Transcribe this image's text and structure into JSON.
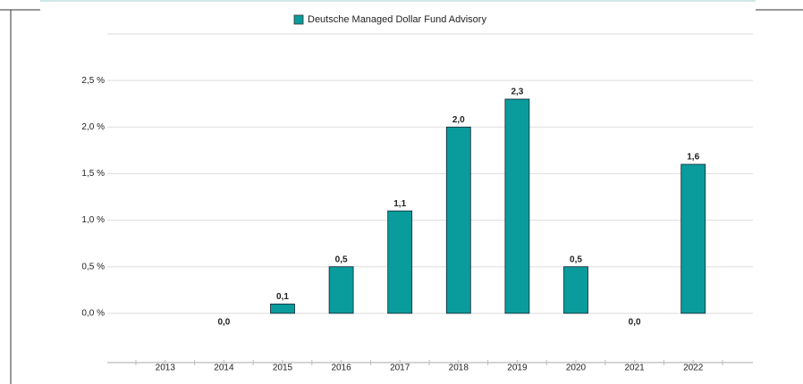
{
  "chart_data": {
    "type": "bar",
    "series": [
      {
        "name": "Deutsche Managed Dollar Fund Advisory",
        "color": "#0a9c9c",
        "values": [
          null,
          0.0,
          0.1,
          0.5,
          1.1,
          2.0,
          2.3,
          0.5,
          0.0,
          1.6
        ],
        "value_labels": [
          null,
          "0,0",
          "0,1",
          "0,5",
          "1,1",
          "2,0",
          "2,3",
          "0,5",
          "0,0",
          "1,6"
        ]
      }
    ],
    "categories": [
      "2013",
      "2014",
      "2015",
      "2016",
      "2017",
      "2018",
      "2019",
      "2020",
      "2021",
      "2022"
    ],
    "ylim": [
      -0.5,
      3.0
    ],
    "yticks": [
      {
        "value": 0,
        "label": "0,0 %"
      },
      {
        "value": 0.5,
        "label": "0,5 %"
      },
      {
        "value": 1.0,
        "label": "1,0 %"
      },
      {
        "value": 1.5,
        "label": "1,5 %"
      },
      {
        "value": 2.0,
        "label": "2,0 %"
      },
      {
        "value": 2.5,
        "label": "2,5 %"
      }
    ],
    "grid": true
  }
}
